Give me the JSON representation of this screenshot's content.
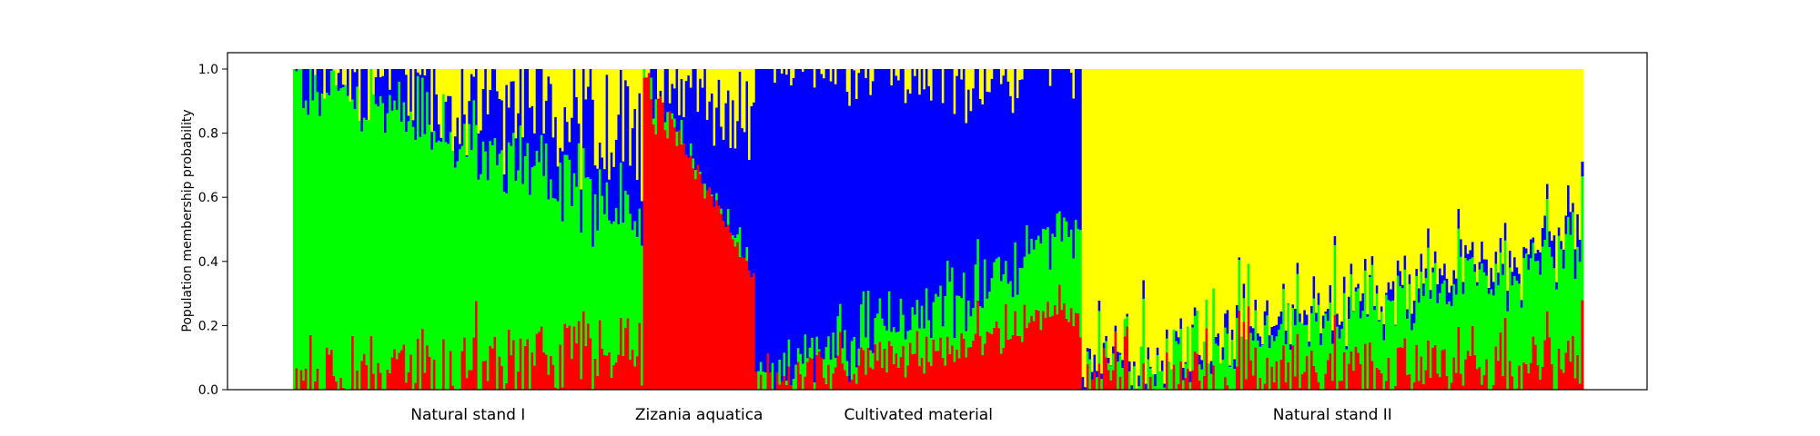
{
  "chart_data": {
    "type": "stacked-bar",
    "title": "",
    "xlabel": "",
    "ylabel": "Population membership probability",
    "ylim": [
      0,
      1.0
    ],
    "yticks": [
      "0.0",
      "0.2",
      "0.4",
      "0.6",
      "0.8",
      "1.0"
    ],
    "grid": false,
    "colors": {
      "red": "#ff0000",
      "green": "#00ff00",
      "blue": "#0000ff",
      "yellow": "#ffff00"
    },
    "stack_order": [
      "red",
      "green",
      "blue",
      "yellow"
    ],
    "groups": [
      {
        "name": "Natural stand I",
        "individuals": 150,
        "start": {
          "red": 0.0,
          "green": 1.0,
          "blue": 0.0
        },
        "end": {
          "red": 0.12,
          "green": 0.4,
          "blue": 0.25
        },
        "noise": {
          "red": 0.12,
          "green": 0.05,
          "blue": 0.15
        }
      },
      {
        "name": "Zizania aquatica",
        "individuals": 48,
        "start": {
          "red": 1.0,
          "green": 0.0,
          "blue": 0.0
        },
        "end": {
          "red": 0.35,
          "green": 0.0,
          "blue": 0.45
        },
        "noise": {
          "red": 0.02,
          "green": 0.05,
          "blue": 0.1
        }
      },
      {
        "name": "Cultivated material",
        "individuals": 140,
        "start": {
          "red": 0.0,
          "green": 0.0,
          "blue": 0.99
        },
        "end": {
          "red": 0.25,
          "green": 0.25,
          "blue": 0.5
        },
        "noise": {
          "red": 0.08,
          "green": 0.08,
          "blue": 0.03
        }
      },
      {
        "name": "Natural stand II",
        "individuals": 215,
        "start": {
          "red": 0.0,
          "green": 0.0,
          "blue": 0.0
        },
        "end": {
          "red": 0.1,
          "green": 0.35,
          "blue": 0.05
        },
        "noise": {
          "red": 0.1,
          "green": 0.06,
          "blue": 0.03
        }
      }
    ]
  }
}
